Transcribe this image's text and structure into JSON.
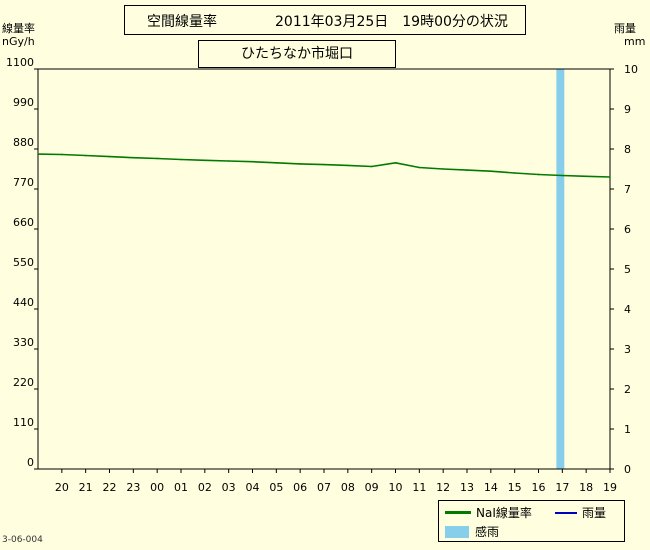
{
  "header": {
    "title": "空間線量率",
    "datetime": "2011年03月25日　19時00分の状況",
    "location": "ひたちなか市堀口"
  },
  "axes": {
    "left_label_line1": "線量率",
    "left_label_line2": "nGy/h",
    "right_label_line1": "雨量",
    "right_label_line2": "mm"
  },
  "legend": {
    "dose_label": "NaI線量率",
    "rain_label": "雨量",
    "sense_rain_label": "感雨"
  },
  "colors": {
    "dose": "#007a00",
    "rain": "#0000c0",
    "sense_rain": "#87ceeb",
    "plot_bg": "#ffffe0"
  },
  "footnote": "3-06-004",
  "chart_data": {
    "type": "line",
    "x_ticks": [
      "20",
      "21",
      "22",
      "23",
      "00",
      "01",
      "02",
      "03",
      "04",
      "05",
      "06",
      "07",
      "08",
      "09",
      "10",
      "11",
      "12",
      "13",
      "14",
      "15",
      "16",
      "17",
      "18",
      "19"
    ],
    "y_left_ticks": [
      "0",
      "110",
      "220",
      "330",
      "440",
      "550",
      "660",
      "770",
      "880",
      "990",
      "1100"
    ],
    "y_left_range": [
      0,
      1100
    ],
    "y_right_ticks": [
      "0",
      "1",
      "2",
      "3",
      "4",
      "5",
      "6",
      "7",
      "8",
      "9",
      "10"
    ],
    "y_right_range": [
      0,
      10
    ],
    "series": [
      {
        "name": "NaI線量率",
        "x": [
          "19:00",
          "20:00",
          "21:00",
          "22:00",
          "23:00",
          "00:00",
          "01:00",
          "02:00",
          "03:00",
          "04:00",
          "05:00",
          "06:00",
          "07:00",
          "08:00",
          "09:00",
          "10:00",
          "11:00",
          "12:00",
          "13:00",
          "14:00",
          "15:00",
          "16:00",
          "17:00",
          "18:00",
          "19:00"
        ],
        "y": [
          866,
          865,
          862,
          859,
          856,
          854,
          851,
          849,
          847,
          845,
          842,
          839,
          837,
          835,
          832,
          842,
          829,
          825,
          822,
          819,
          814,
          810,
          807,
          805,
          803
        ]
      },
      {
        "name": "雨量",
        "x": [],
        "y": []
      }
    ],
    "sense_rain": [
      {
        "start": "16:45",
        "end": "17:05"
      }
    ]
  }
}
